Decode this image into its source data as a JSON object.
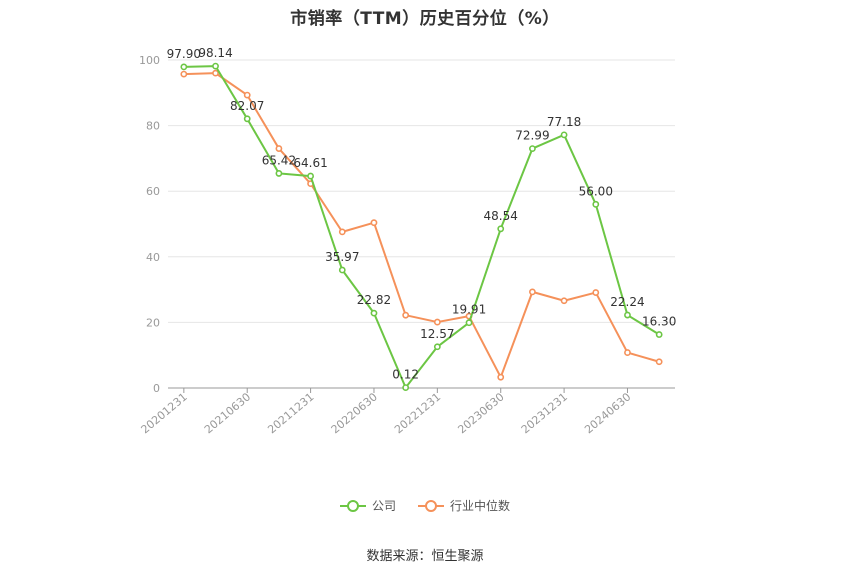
{
  "chart_data": {
    "type": "line",
    "title": "市销率（TTM）历史百分位（%）",
    "categories": [
      "20201231",
      "",
      "20210630",
      "",
      "20211231",
      "",
      "20220630",
      "",
      "20221231",
      "",
      "20230630",
      "",
      "20231231",
      "",
      "20240630",
      ""
    ],
    "x_tick_labels": [
      "20201231",
      "20210630",
      "20211231",
      "20220630",
      "20221231",
      "20230630",
      "20231231",
      "20240630"
    ],
    "ylim": [
      0,
      100
    ],
    "y_ticks": [
      0,
      20,
      40,
      60,
      80,
      100
    ],
    "grid": true,
    "legend_position": "bottom",
    "series": [
      {
        "name": "公司",
        "color": "#6cc644",
        "values": [
          97.9,
          98.14,
          82.07,
          65.42,
          64.61,
          35.97,
          22.82,
          0.12,
          12.57,
          19.91,
          48.54,
          72.99,
          77.18,
          56.0,
          22.24,
          16.3
        ],
        "labels": [
          "97.90",
          "98.14",
          "82.07",
          "65.42",
          "64.61",
          "35.97",
          "22.82",
          "0.12",
          "12.57",
          "19.91",
          "48.54",
          "72.99",
          "77.18",
          "56.00",
          "22.24",
          "16.30"
        ]
      },
      {
        "name": "行业中位数",
        "color": "#f5915a",
        "values": [
          95.7,
          96.0,
          89.3,
          73.0,
          62.3,
          47.6,
          50.4,
          22.2,
          20.1,
          21.9,
          3.3,
          29.3,
          26.6,
          29.1,
          10.8,
          8.0
        ]
      }
    ]
  },
  "footer": {
    "source": "数据来源：恒生聚源"
  }
}
